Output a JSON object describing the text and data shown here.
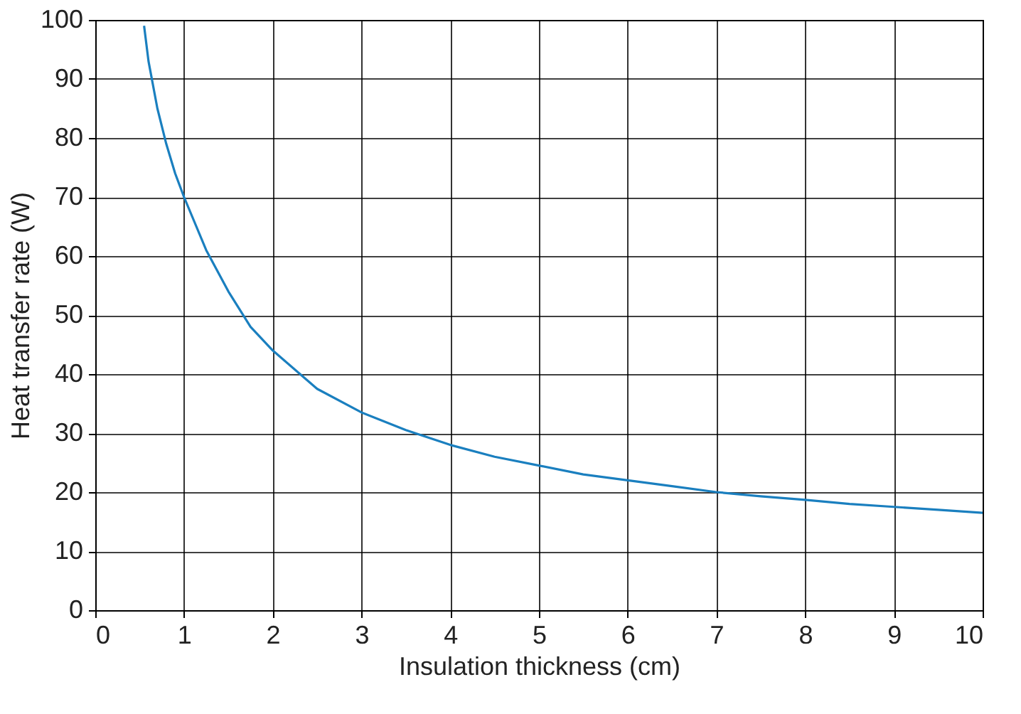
{
  "chart_data": {
    "type": "line",
    "xlabel": "Insulation thickness (cm)",
    "ylabel": "Heat transfer rate (W)",
    "x": [
      0.55,
      0.6,
      0.7,
      0.8,
      0.9,
      1,
      1.25,
      1.5,
      1.75,
      2,
      2.5,
      3,
      3.5,
      4,
      4.5,
      5,
      5.5,
      6,
      6.5,
      7,
      7.5,
      8,
      8.5,
      9,
      9.5,
      10
    ],
    "series": [
      {
        "color": "#1a7fbf",
        "values": [
          99,
          93,
          85,
          79,
          74,
          70,
          61,
          54,
          48,
          44,
          37.5,
          33.5,
          30.5,
          28,
          26,
          24.5,
          23,
          22,
          21,
          20,
          19.3,
          18.7,
          18,
          17.5,
          17,
          16.5
        ]
      }
    ],
    "xlim": [
      0,
      10
    ],
    "ylim": [
      0,
      100
    ],
    "xticks": [
      0,
      1,
      2,
      3,
      4,
      5,
      6,
      7,
      8,
      9,
      10
    ],
    "yticks": [
      0,
      10,
      20,
      30,
      40,
      50,
      60,
      70,
      80,
      90,
      100
    ],
    "grid": true,
    "line_style": "solid",
    "marker": "none"
  }
}
